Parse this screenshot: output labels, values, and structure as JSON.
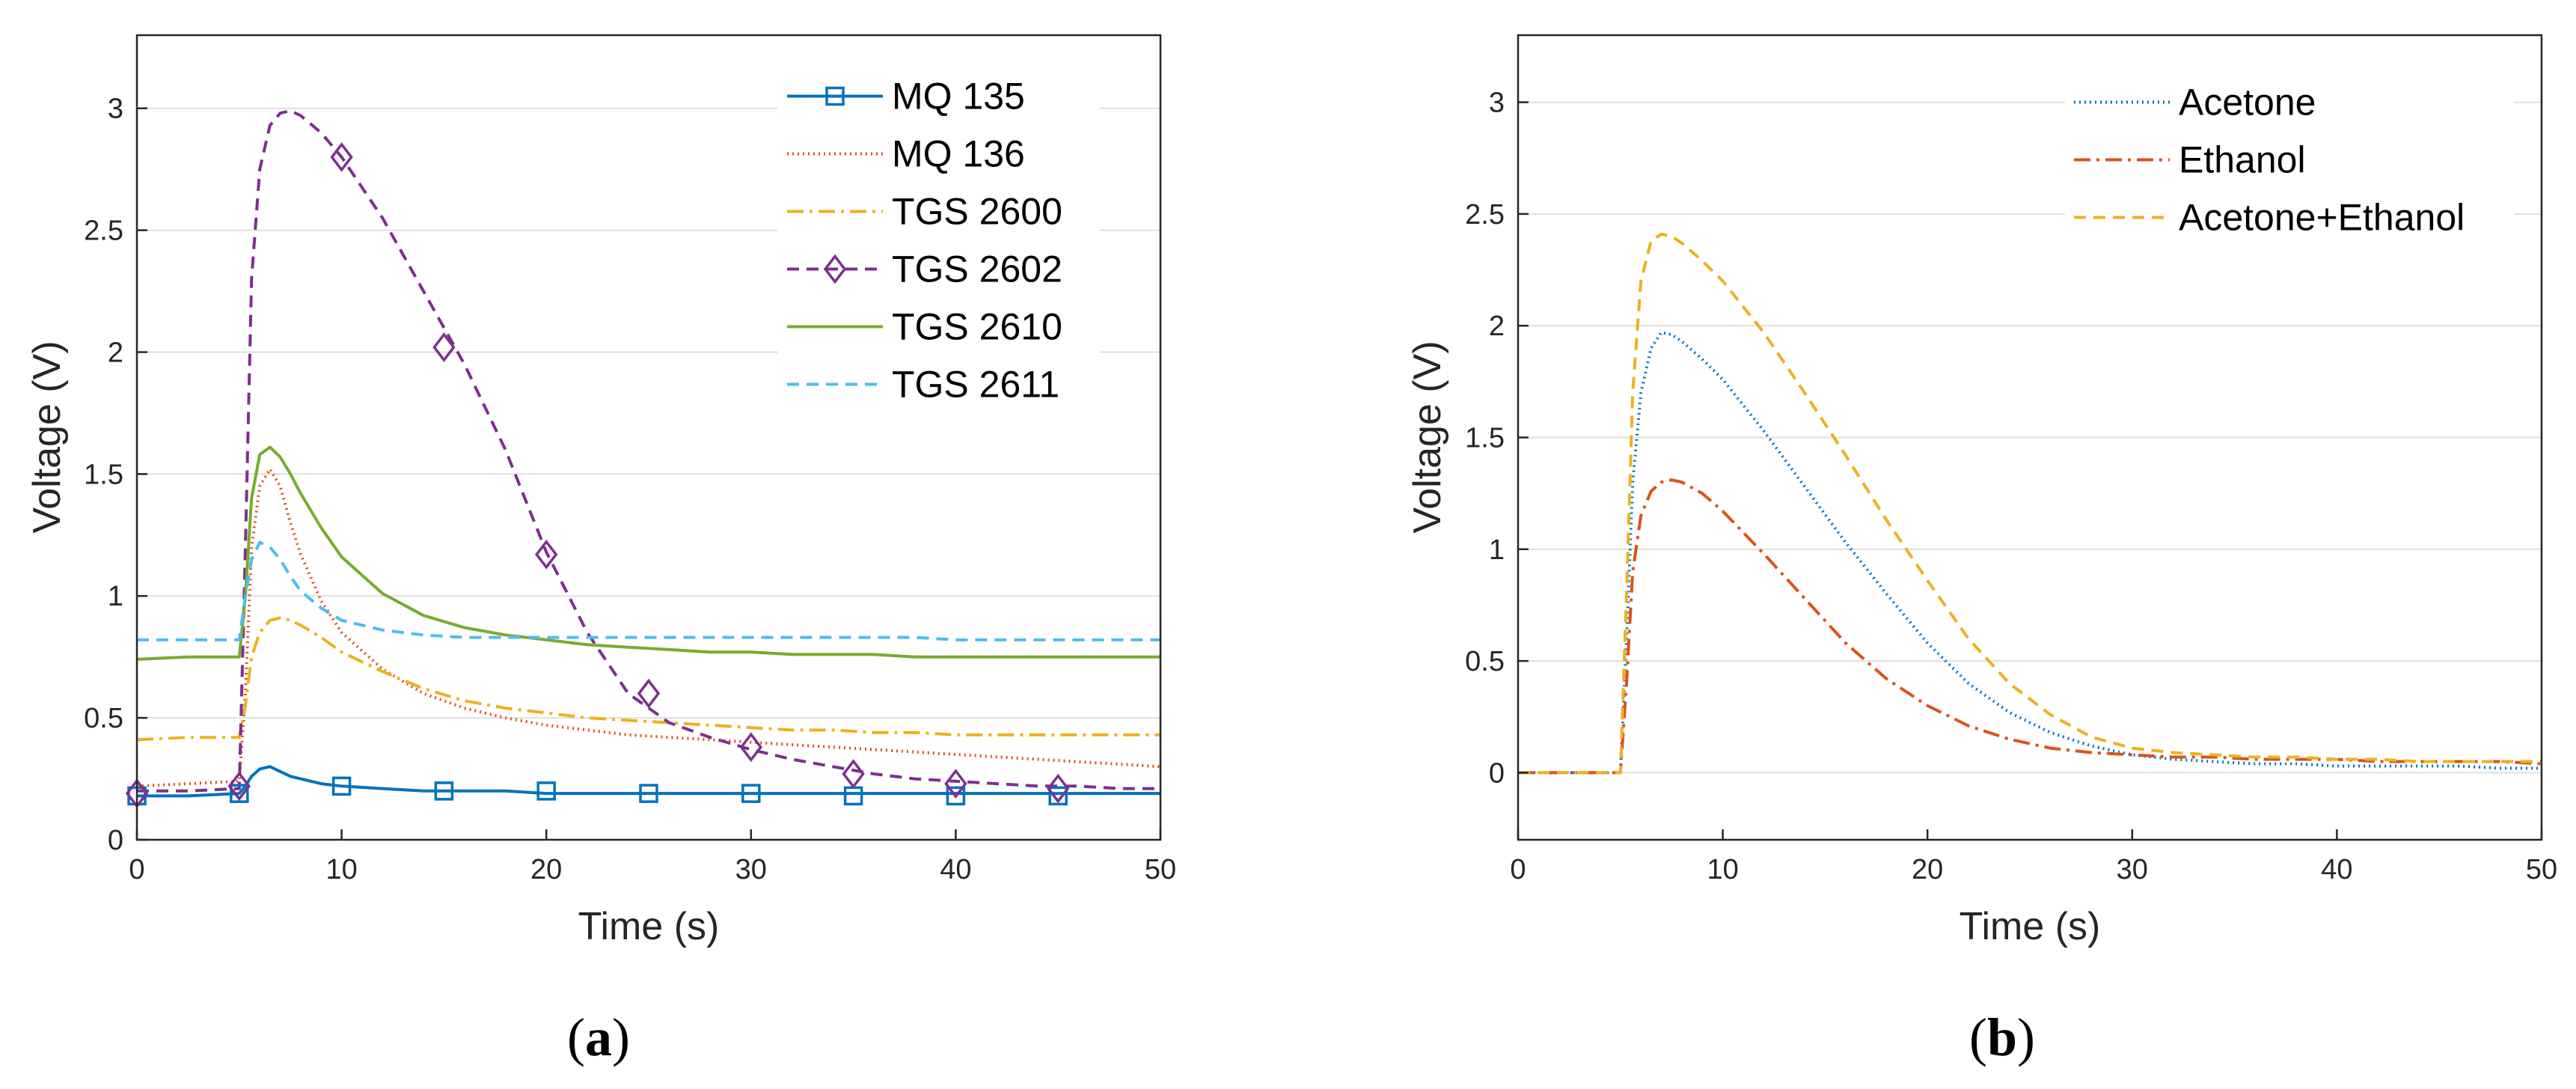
{
  "chart_data": [
    {
      "type": "line",
      "panel": "(a)",
      "panel_open": "(",
      "panel_letter": "a",
      "panel_close": ")",
      "xlabel": "Time (s)",
      "ylabel": "Voltage (V)",
      "xlim": [
        0,
        50
      ],
      "ylim": [
        0,
        3.3
      ],
      "xticks": [
        "0",
        "10",
        "20",
        "30",
        "40",
        "50"
      ],
      "yticks": [
        "0",
        "0.5",
        "1",
        "1.5",
        "2",
        "2.5",
        "3"
      ],
      "grid": "horizontal",
      "legend": "top-right",
      "x": [
        0,
        2.5,
        5,
        5.3,
        5.6,
        6,
        6.5,
        7,
        7.5,
        8,
        9,
        10,
        12,
        14,
        16,
        18,
        20,
        22,
        24,
        26,
        28,
        30,
        32,
        34,
        36,
        38,
        40,
        42,
        44,
        46,
        48,
        50
      ],
      "series": [
        {
          "name": "MQ 135",
          "color": "#0072BD",
          "dash": "",
          "marker": "square",
          "values": [
            0.18,
            0.18,
            0.19,
            0.22,
            0.26,
            0.29,
            0.3,
            0.28,
            0.26,
            0.25,
            0.23,
            0.22,
            0.21,
            0.2,
            0.2,
            0.2,
            0.19,
            0.19,
            0.19,
            0.19,
            0.19,
            0.19,
            0.19,
            0.19,
            0.19,
            0.19,
            0.19,
            0.19,
            0.19,
            0.19,
            0.19,
            0.19
          ]
        },
        {
          "name": "MQ 136",
          "color": "#D95319",
          "dash": "2 5",
          "marker": "",
          "values": [
            0.22,
            0.23,
            0.24,
            0.6,
            1.2,
            1.45,
            1.52,
            1.45,
            1.3,
            1.17,
            0.98,
            0.85,
            0.7,
            0.6,
            0.54,
            0.5,
            0.47,
            0.45,
            0.43,
            0.42,
            0.41,
            0.4,
            0.39,
            0.38,
            0.37,
            0.36,
            0.35,
            0.34,
            0.33,
            0.32,
            0.31,
            0.3
          ]
        },
        {
          "name": "TGS 2600",
          "color": "#EDB120",
          "dash": "22 8 4 8",
          "marker": "",
          "values": [
            0.41,
            0.42,
            0.42,
            0.55,
            0.75,
            0.85,
            0.9,
            0.91,
            0.9,
            0.88,
            0.83,
            0.77,
            0.69,
            0.62,
            0.57,
            0.54,
            0.52,
            0.5,
            0.49,
            0.48,
            0.47,
            0.46,
            0.45,
            0.45,
            0.44,
            0.44,
            0.43,
            0.43,
            0.43,
            0.43,
            0.43,
            0.43
          ]
        },
        {
          "name": "TGS 2602",
          "color": "#7E2F8E",
          "dash": "16 10",
          "marker": "diamond",
          "values": [
            0.2,
            0.2,
            0.21,
            1.2,
            2.3,
            2.75,
            2.93,
            2.98,
            2.99,
            2.97,
            2.9,
            2.8,
            2.55,
            2.25,
            1.95,
            1.6,
            1.18,
            0.85,
            0.6,
            0.48,
            0.42,
            0.37,
            0.33,
            0.3,
            0.27,
            0.25,
            0.24,
            0.23,
            0.22,
            0.22,
            0.21,
            0.21
          ]
        },
        {
          "name": "TGS 2610",
          "color": "#77AC30",
          "dash": "",
          "marker": "",
          "values": [
            0.74,
            0.75,
            0.75,
            1.0,
            1.4,
            1.58,
            1.61,
            1.57,
            1.5,
            1.42,
            1.28,
            1.16,
            1.01,
            0.92,
            0.87,
            0.84,
            0.82,
            0.8,
            0.79,
            0.78,
            0.77,
            0.77,
            0.76,
            0.76,
            0.76,
            0.75,
            0.75,
            0.75,
            0.75,
            0.75,
            0.75,
            0.75
          ]
        },
        {
          "name": "TGS 2611",
          "color": "#4DBEEE",
          "dash": "16 10",
          "marker": "",
          "values": [
            0.82,
            0.82,
            0.82,
            1.0,
            1.15,
            1.22,
            1.2,
            1.15,
            1.08,
            1.02,
            0.95,
            0.9,
            0.86,
            0.84,
            0.83,
            0.83,
            0.83,
            0.83,
            0.83,
            0.83,
            0.83,
            0.83,
            0.83,
            0.83,
            0.83,
            0.83,
            0.82,
            0.82,
            0.82,
            0.82,
            0.82,
            0.82
          ]
        }
      ],
      "markers": {
        "MQ 135": {
          "x": [
            0,
            5,
            10,
            15,
            20,
            25,
            30,
            35,
            40,
            45
          ],
          "y": [
            0.18,
            0.19,
            0.22,
            0.2,
            0.2,
            0.19,
            0.19,
            0.18,
            0.18,
            0.18
          ]
        },
        "TGS 2602": {
          "x": [
            0,
            5,
            10,
            15,
            20,
            25,
            30,
            35,
            40,
            45
          ],
          "y": [
            0.19,
            0.22,
            2.8,
            2.02,
            1.17,
            0.6,
            0.38,
            0.27,
            0.23,
            0.21
          ]
        }
      }
    },
    {
      "type": "line",
      "panel": "(b)",
      "panel_open": "(",
      "panel_letter": "b",
      "panel_close": ")",
      "xlabel": "Time (s)",
      "ylabel": "Voltage (V)",
      "xlim": [
        0,
        50
      ],
      "ylim": [
        -0.3,
        3.3
      ],
      "xticks": [
        "0",
        "10",
        "20",
        "30",
        "40",
        "50"
      ],
      "yticks": [
        "0",
        "0.5",
        "1",
        "1.5",
        "2",
        "2.5",
        "3"
      ],
      "grid": "horizontal",
      "legend": "top-right",
      "x": [
        0,
        2.5,
        5,
        5.3,
        5.6,
        6,
        6.5,
        7,
        7.5,
        8,
        9,
        10,
        12,
        14,
        16,
        18,
        20,
        22,
        24,
        26,
        28,
        30,
        32,
        34,
        36,
        38,
        40,
        42,
        44,
        46,
        48,
        50
      ],
      "series": [
        {
          "name": "Acetone",
          "color": "#0072BD",
          "dash": "2 5",
          "marker": "",
          "values": [
            0,
            0,
            0,
            0.6,
            1.3,
            1.7,
            1.9,
            1.97,
            1.96,
            1.93,
            1.85,
            1.76,
            1.53,
            1.28,
            1.03,
            0.8,
            0.58,
            0.4,
            0.27,
            0.18,
            0.12,
            0.08,
            0.06,
            0.05,
            0.04,
            0.04,
            0.03,
            0.03,
            0.03,
            0.03,
            0.02,
            0.02
          ]
        },
        {
          "name": "Ethanol",
          "color": "#D95319",
          "dash": "22 8 4 8",
          "marker": "",
          "values": [
            0,
            0,
            0,
            0.4,
            0.9,
            1.15,
            1.26,
            1.3,
            1.31,
            1.3,
            1.25,
            1.17,
            0.98,
            0.78,
            0.58,
            0.42,
            0.3,
            0.21,
            0.15,
            0.11,
            0.09,
            0.08,
            0.07,
            0.07,
            0.06,
            0.06,
            0.06,
            0.05,
            0.05,
            0.05,
            0.05,
            0.04
          ]
        },
        {
          "name": "Acetone+Ethanol",
          "color": "#EDB120",
          "dash": "16 10",
          "marker": "",
          "values": [
            0,
            0,
            0,
            0.8,
            1.7,
            2.2,
            2.38,
            2.41,
            2.4,
            2.37,
            2.29,
            2.2,
            1.97,
            1.7,
            1.42,
            1.13,
            0.86,
            0.6,
            0.4,
            0.26,
            0.16,
            0.11,
            0.09,
            0.08,
            0.07,
            0.07,
            0.06,
            0.06,
            0.05,
            0.05,
            0.05,
            0.05
          ]
        }
      ],
      "markers": {}
    }
  ]
}
